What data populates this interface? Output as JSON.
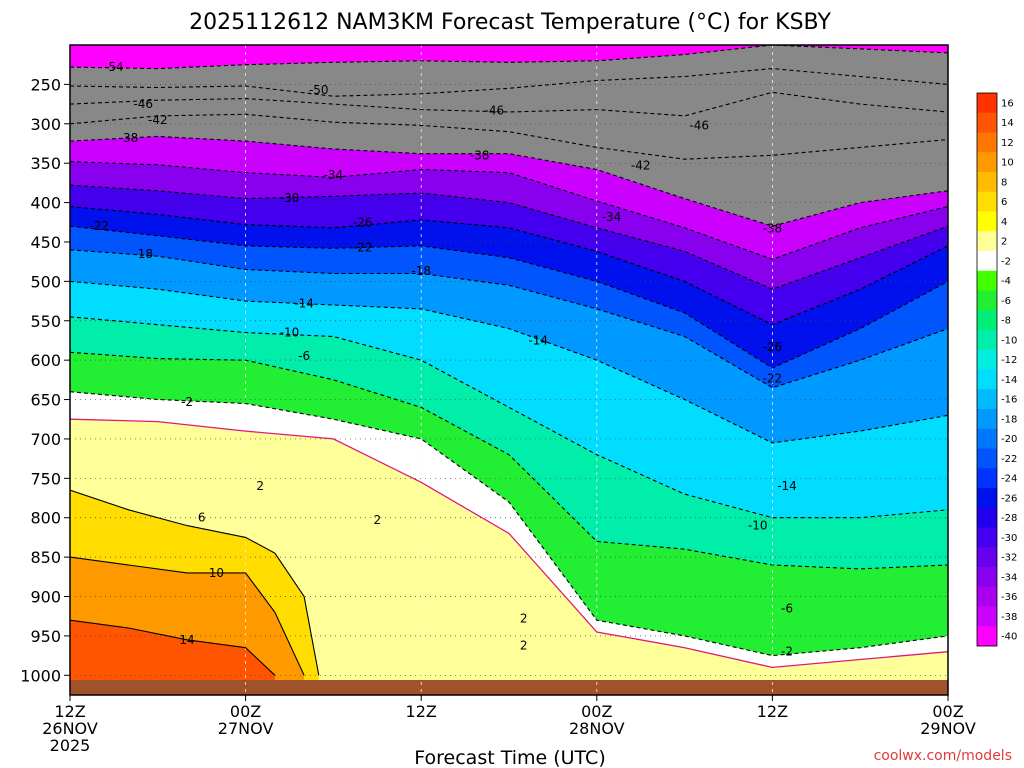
{
  "chart_data": {
    "type": "heatmap",
    "title": "2025112612 NAM3KM Forecast Temperature (°C) for KSBY",
    "xlabel": "Forecast Time (UTC)",
    "ylabel": "",
    "credit": "coolwx.com/models",
    "x_hours_range": [
      0,
      60
    ],
    "x_ticks": [
      {
        "hour": 0,
        "line1": "12Z",
        "line2": "26NOV",
        "line3": "2025"
      },
      {
        "hour": 12,
        "line1": "00Z",
        "line2": "27NOV",
        "line3": ""
      },
      {
        "hour": 24,
        "line1": "12Z",
        "line2": "",
        "line3": ""
      },
      {
        "hour": 36,
        "line1": "00Z",
        "line2": "28NOV",
        "line3": ""
      },
      {
        "hour": 48,
        "line1": "12Z",
        "line2": "",
        "line3": ""
      },
      {
        "hour": 60,
        "line1": "00Z",
        "line2": "29NOV",
        "line3": ""
      }
    ],
    "y_pressure_range": [
      1025,
      200
    ],
    "y_ticks": [
      250,
      300,
      350,
      400,
      450,
      500,
      550,
      600,
      650,
      700,
      750,
      800,
      850,
      900,
      950,
      1000
    ],
    "colorbar": {
      "labels": [
        "16",
        "14",
        "12",
        "10",
        "8",
        "6",
        "4",
        "2",
        "-2",
        "-4",
        "-6",
        "-8",
        "-10",
        "-12",
        "-14",
        "-16",
        "-18",
        "-20",
        "-22",
        "-24",
        "-26",
        "-28",
        "-30",
        "-32",
        "-34",
        "-36",
        "-38",
        "-40"
      ],
      "colors": [
        "#ff3300",
        "#ff5500",
        "#ff7700",
        "#ff9900",
        "#ffbb00",
        "#ffdd00",
        "#ffff00",
        "#ffff99",
        "#ffffff",
        "#44ff00",
        "#22ee33",
        "#00ee77",
        "#00eeaa",
        "#00eedd",
        "#00ddff",
        "#00bbff",
        "#0099ff",
        "#0077ff",
        "#0055ff",
        "#0033ff",
        "#0011ee",
        "#2200ee",
        "#4400ee",
        "#6600ee",
        "#8800ee",
        "#aa00ee",
        "#cc00ff",
        "#ff00ff"
      ]
    },
    "surface_color": "#a0522d",
    "series": [
      {
        "value": -54,
        "hours": [
          0,
          6,
          12,
          18,
          24,
          30,
          36,
          42,
          48,
          54,
          60
        ],
        "pressure": [
          228,
          230,
          225,
          222,
          220,
          222,
          220,
          212,
          200,
          205,
          210
        ]
      },
      {
        "value": -50,
        "hours": [
          0,
          6,
          12,
          18,
          24,
          30,
          36,
          42,
          48,
          54,
          60
        ],
        "pressure": [
          252,
          254,
          252,
          265,
          262,
          255,
          245,
          240,
          230,
          240,
          250
        ]
      },
      {
        "value": -46,
        "hours": [
          0,
          6,
          12,
          18,
          24,
          30,
          36,
          42,
          48,
          54,
          60
        ],
        "pressure": [
          275,
          270,
          268,
          275,
          282,
          285,
          282,
          290,
          260,
          275,
          285
        ]
      },
      {
        "value": -42,
        "hours": [
          0,
          6,
          12,
          18,
          24,
          30,
          36,
          42,
          48,
          54,
          60
        ],
        "pressure": [
          300,
          290,
          288,
          298,
          302,
          310,
          330,
          345,
          340,
          330,
          320
        ]
      },
      {
        "value": -38,
        "hours": [
          0,
          6,
          12,
          18,
          24,
          30,
          36,
          42,
          48,
          54,
          60
        ],
        "pressure": [
          322,
          316,
          322,
          332,
          338,
          338,
          358,
          395,
          430,
          400,
          385
        ]
      },
      {
        "value": -34,
        "hours": [
          0,
          6,
          12,
          18,
          24,
          30,
          36,
          42,
          48,
          54,
          60
        ],
        "pressure": [
          348,
          352,
          362,
          368,
          358,
          362,
          398,
          432,
          472,
          432,
          405
        ]
      },
      {
        "value": -30,
        "hours": [
          0,
          6,
          12,
          18,
          24,
          30,
          36,
          42,
          48,
          54,
          60
        ],
        "pressure": [
          378,
          385,
          395,
          392,
          388,
          400,
          432,
          462,
          510,
          470,
          430
        ]
      },
      {
        "value": -26,
        "hours": [
          0,
          6,
          12,
          18,
          24,
          30,
          36,
          42,
          48,
          54,
          60
        ],
        "pressure": [
          405,
          415,
          428,
          432,
          422,
          432,
          462,
          500,
          555,
          510,
          455
        ]
      },
      {
        "value": -22,
        "hours": [
          0,
          6,
          12,
          18,
          24,
          30,
          36,
          42,
          48,
          54,
          60
        ],
        "pressure": [
          430,
          442,
          455,
          458,
          455,
          470,
          500,
          540,
          610,
          560,
          500
        ]
      },
      {
        "value": -18,
        "hours": [
          0,
          6,
          12,
          18,
          24,
          30,
          36,
          42,
          48,
          54,
          60
        ],
        "pressure": [
          460,
          468,
          485,
          490,
          490,
          505,
          535,
          570,
          635,
          600,
          560
        ]
      },
      {
        "value": -14,
        "hours": [
          0,
          6,
          12,
          18,
          24,
          30,
          36,
          42,
          48,
          54,
          60
        ],
        "pressure": [
          500,
          510,
          525,
          530,
          535,
          560,
          600,
          650,
          705,
          690,
          670
        ]
      },
      {
        "value": -10,
        "hours": [
          0,
          6,
          12,
          18,
          24,
          30,
          36,
          42,
          48,
          54,
          60
        ],
        "pressure": [
          545,
          555,
          565,
          570,
          600,
          660,
          720,
          770,
          800,
          800,
          790
        ]
      },
      {
        "value": -6,
        "hours": [
          0,
          6,
          12,
          18,
          24,
          30,
          36,
          42,
          48,
          54,
          60
        ],
        "pressure": [
          590,
          598,
          600,
          625,
          660,
          720,
          830,
          840,
          860,
          865,
          860
        ]
      },
      {
        "value": -2,
        "hours": [
          0,
          6,
          12,
          18,
          24,
          30,
          36,
          42,
          48,
          54,
          60
        ],
        "pressure": [
          640,
          650,
          655,
          675,
          700,
          780,
          930,
          950,
          975,
          965,
          950
        ]
      },
      {
        "value": 2,
        "hours": [
          0,
          6,
          12,
          18,
          24,
          30,
          36,
          42,
          48,
          54,
          60
        ],
        "pressure": [
          675,
          678,
          690,
          700,
          755,
          820,
          945,
          965,
          990,
          980,
          970
        ]
      },
      {
        "value": 6,
        "hours": [
          0,
          4,
          8,
          12,
          14,
          16,
          17
        ],
        "pressure": [
          765,
          790,
          810,
          825,
          845,
          900,
          1000
        ]
      },
      {
        "value": 10,
        "hours": [
          0,
          4,
          8,
          12,
          14,
          16
        ],
        "pressure": [
          850,
          860,
          870,
          870,
          920,
          1000
        ]
      },
      {
        "value": 14,
        "hours": [
          0,
          4,
          8,
          12,
          14
        ],
        "pressure": [
          930,
          940,
          955,
          965,
          1000
        ]
      }
    ],
    "contour_labels": [
      {
        "text": "-54",
        "hour": 3,
        "pressure": 228
      },
      {
        "text": "-50",
        "hour": 17,
        "pressure": 257
      },
      {
        "text": "-46",
        "hour": 5,
        "pressure": 275
      },
      {
        "text": "-46",
        "hour": 29,
        "pressure": 283
      },
      {
        "text": "-46",
        "hour": 43,
        "pressure": 302
      },
      {
        "text": "-42",
        "hour": 6,
        "pressure": 295
      },
      {
        "text": "-42",
        "hour": 39,
        "pressure": 353
      },
      {
        "text": "-38",
        "hour": 4,
        "pressure": 318
      },
      {
        "text": "-38",
        "hour": 28,
        "pressure": 340
      },
      {
        "text": "-38",
        "hour": 48,
        "pressure": 433
      },
      {
        "text": "-34",
        "hour": 18,
        "pressure": 365
      },
      {
        "text": "-34",
        "hour": 37,
        "pressure": 418
      },
      {
        "text": "-30",
        "hour": 15,
        "pressure": 394
      },
      {
        "text": "-26",
        "hour": 20,
        "pressure": 425
      },
      {
        "text": "-26",
        "hour": 48,
        "pressure": 583
      },
      {
        "text": "-22",
        "hour": 2,
        "pressure": 430
      },
      {
        "text": "-22",
        "hour": 20,
        "pressure": 457
      },
      {
        "text": "-22",
        "hour": 48,
        "pressure": 623
      },
      {
        "text": "-18",
        "hour": 5,
        "pressure": 465
      },
      {
        "text": "-18",
        "hour": 24,
        "pressure": 487
      },
      {
        "text": "-14",
        "hour": 16,
        "pressure": 528
      },
      {
        "text": "-14",
        "hour": 32,
        "pressure": 575
      },
      {
        "text": "-14",
        "hour": 49,
        "pressure": 760
      },
      {
        "text": "-10",
        "hour": 15,
        "pressure": 565
      },
      {
        "text": "-10",
        "hour": 47,
        "pressure": 810
      },
      {
        "text": "-6",
        "hour": 16,
        "pressure": 595
      },
      {
        "text": "-6",
        "hour": 49,
        "pressure": 915
      },
      {
        "text": "-2",
        "hour": 8,
        "pressure": 653
      },
      {
        "text": "-2",
        "hour": 49,
        "pressure": 970
      },
      {
        "text": "2",
        "hour": 13,
        "pressure": 760
      },
      {
        "text": "2",
        "hour": 21,
        "pressure": 803
      },
      {
        "text": "2",
        "hour": 31,
        "pressure": 928
      },
      {
        "text": "2",
        "hour": 31,
        "pressure": 962
      },
      {
        "text": "6",
        "hour": 9,
        "pressure": 800
      },
      {
        "text": "10",
        "hour": 10,
        "pressure": 870
      },
      {
        "text": "14",
        "hour": 8,
        "pressure": 955
      }
    ]
  }
}
